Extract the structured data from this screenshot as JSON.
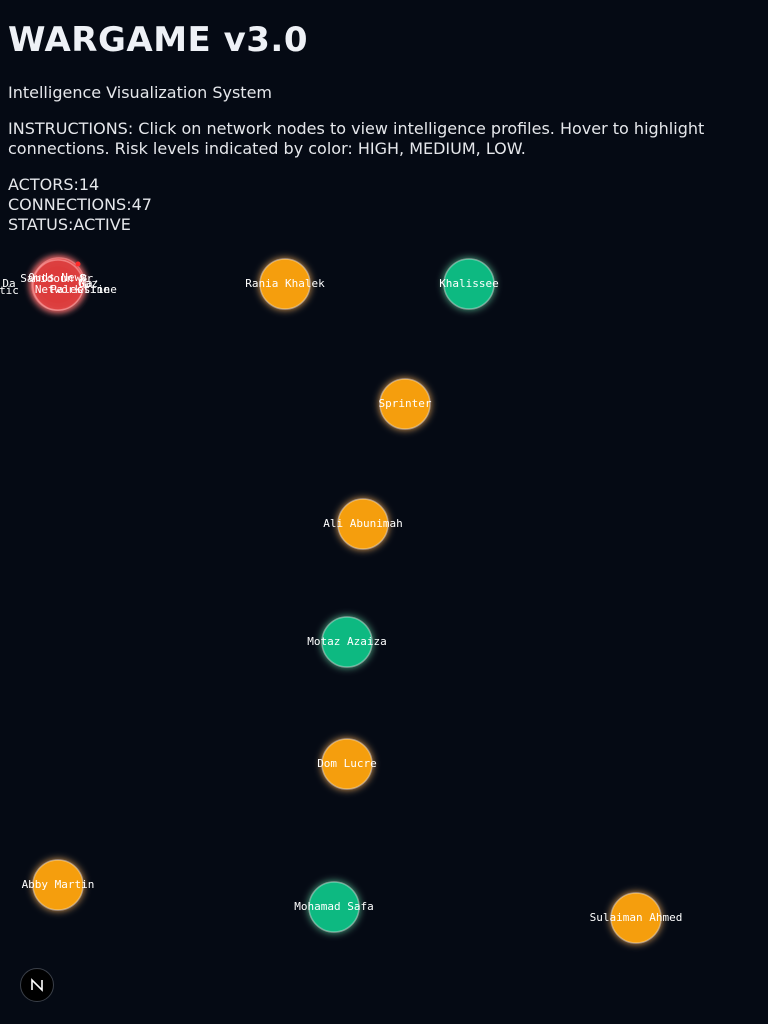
{
  "app": {
    "title": "WARGAME v3.0",
    "subtitle": "Intelligence Visualization System",
    "instructions": "INSTRUCTIONS: Click on network nodes to view intelligence profiles. Hover to highlight connections. Risk levels indicated by color: HIGH, MEDIUM, LOW."
  },
  "stats": {
    "actors_label": "ACTORS:",
    "actors_value": "14",
    "connections_label": "CONNECTIONS:",
    "connections_value": "47",
    "status_label": "STATUS:",
    "status_value": "ACTIVE"
  },
  "risk_colors": {
    "high": "#dc3c3c",
    "medium": "#f59e0b",
    "low": "#10b981"
  },
  "nodes": [
    {
      "label": "Rania Khalek",
      "risk": "medium"
    },
    {
      "label": "Khalissee",
      "risk": "low"
    },
    {
      "label": "Sprinter",
      "risk": "medium"
    },
    {
      "label": "Ali Abunimah",
      "risk": "medium"
    },
    {
      "label": "Motaz Azaiza",
      "risk": "low"
    },
    {
      "label": "Dom Lucre",
      "risk": "medium"
    },
    {
      "label": "Abby Martin",
      "risk": "medium"
    },
    {
      "label": "Mohamad Safa",
      "risk": "low"
    },
    {
      "label": "Sulaiman Ahmed",
      "risk": "medium"
    }
  ],
  "cluster": {
    "risk": "high",
    "labels": [
      "Quds News",
      "Network",
      "Samidoun Pr.",
      "Palestine",
      "Da",
      "Ma",
      "Gaz",
      "tic",
      "estine"
    ]
  },
  "corner_badge": {
    "letter": "N",
    "icon": "n-logo-icon"
  }
}
